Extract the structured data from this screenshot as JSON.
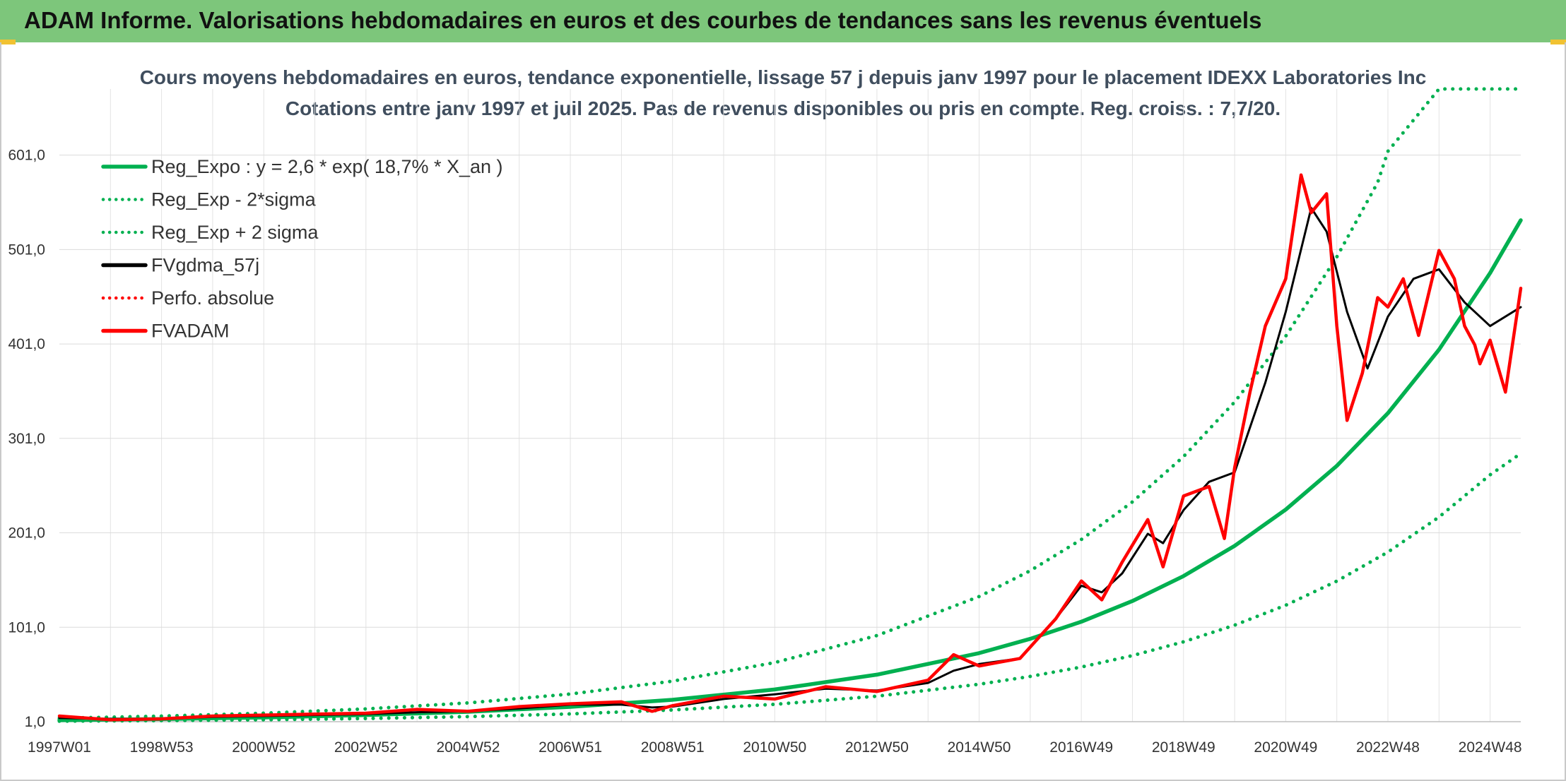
{
  "header": {
    "title": "ADAM Informe. Valorisations hebdomadaires en euros et des courbes de tendances sans les revenus éventuels"
  },
  "colors": {
    "header_bg": "#7dc67b",
    "green": "#00b050",
    "red": "#ff0000",
    "black": "#000000"
  },
  "chart_data": {
    "type": "line",
    "title": "Cours moyens hebdomadaires en euros, tendance exponentielle, lissage 57 j depuis janv 1997 pour le placement IDEXX Laboratories Inc",
    "subtitle": "Cotations entre janv 1997 et juil 2025. Pas de revenus disponibles ou pris en compte. Reg. croiss. : 7,7/20.",
    "xlabel": "",
    "ylabel": "",
    "ylim": [
      1,
      671
    ],
    "xlim": [
      1997.0,
      2025.6
    ],
    "y_ticks": [
      "1,0",
      "101,0",
      "201,0",
      "301,0",
      "401,0",
      "501,0",
      "601,0"
    ],
    "y_tick_values": [
      1,
      101,
      201,
      301,
      401,
      501,
      601
    ],
    "x_ticks": [
      "1997W01",
      "1998W53",
      "2000W52",
      "2002W52",
      "2004W52",
      "2006W51",
      "2008W51",
      "2010W50",
      "2012W50",
      "2014W50",
      "2016W49",
      "2018W49",
      "2020W49",
      "2022W48",
      "2024W48"
    ],
    "x_tick_values": [
      1997.0,
      1999.0,
      2001.0,
      2003.0,
      2005.0,
      2007.0,
      2009.0,
      2011.0,
      2013.0,
      2015.0,
      2017.0,
      2019.0,
      2021.0,
      2023.0,
      2025.0
    ],
    "grid": true,
    "legend_position": "top-left",
    "legend": [
      {
        "label": "Reg_Expo : y = 2,6 * exp( 18,7% *  X_an )",
        "color": "#00b050",
        "style": "solid"
      },
      {
        "label": "Reg_Exp - 2*sigma",
        "color": "#00b050",
        "style": "dotted"
      },
      {
        "label": "Reg_Exp + 2 sigma",
        "color": "#00b050",
        "style": "dotted"
      },
      {
        "label": "FVgdma_57j",
        "color": "#000000",
        "style": "solid"
      },
      {
        "label": "Perfo. absolue",
        "color": "#ff0000",
        "style": "dotted"
      },
      {
        "label": "FVADAM",
        "color": "#ff0000",
        "style": "solid"
      }
    ],
    "series": [
      {
        "name": "Reg_Expo : y = 2,6 * exp( 18,7% *  X_an )",
        "color": "#00b050",
        "style": "solid",
        "x": [
          1997.0,
          1999.0,
          2001.0,
          2003.0,
          2005.0,
          2007.0,
          2009.0,
          2011.0,
          2013.0,
          2015.0,
          2016.0,
          2017.0,
          2018.0,
          2019.0,
          2020.0,
          2021.0,
          2022.0,
          2023.0,
          2024.0,
          2025.0,
          2025.6
        ],
        "y": [
          2.6,
          3.8,
          5.5,
          8.0,
          11.5,
          16.7,
          24.2,
          35.1,
          50.8,
          73.6,
          88.7,
          106.9,
          128.8,
          155.2,
          187.2,
          225.6,
          271.9,
          327.7,
          395.0,
          476.1,
          532.0
        ]
      },
      {
        "name": "Reg_Exp - 2*sigma",
        "color": "#00b050",
        "style": "dotted",
        "x": [
          1997.0,
          1999.0,
          2001.0,
          2003.0,
          2005.0,
          2007.0,
          2009.0,
          2011.0,
          2013.0,
          2015.0,
          2016.0,
          2017.0,
          2018.0,
          2019.0,
          2020.0,
          2021.0,
          2022.0,
          2023.0,
          2024.0,
          2025.0,
          2025.6
        ],
        "y": [
          1.5,
          2.1,
          3.0,
          4.4,
          6.4,
          9.2,
          13.4,
          19.4,
          28.0,
          40.6,
          48.9,
          58.9,
          71.0,
          85.6,
          103.2,
          124.3,
          149.9,
          180.6,
          217.7,
          262.4,
          285.0
        ]
      },
      {
        "name": "Reg_Exp + 2 sigma",
        "color": "#00b050",
        "style": "dotted",
        "x": [
          1997.0,
          1999.0,
          2001.0,
          2003.0,
          2005.0,
          2007.0,
          2009.0,
          2011.0,
          2013.0,
          2015.0,
          2016.0,
          2017.0,
          2018.0,
          2019.0,
          2020.0,
          2021.0,
          2022.0,
          2022.8,
          2023.0,
          2024.0,
          2025.0,
          2025.6
        ],
        "y": [
          4.7,
          6.9,
          10.0,
          14.5,
          20.9,
          30.3,
          43.9,
          63.6,
          92.2,
          133.5,
          160.9,
          193.9,
          233.8,
          281.7,
          339.5,
          409.2,
          493.2,
          572.0,
          605.0,
          671.0,
          671.0,
          671.0
        ]
      },
      {
        "name": "FVgdma_57j",
        "color": "#000000",
        "style": "solid",
        "x": [
          1997.0,
          1998.0,
          1999.0,
          2000.0,
          2001.0,
          2002.0,
          2003.0,
          2004.0,
          2005.0,
          2006.0,
          2007.0,
          2008.0,
          2008.6,
          2009.0,
          2010.0,
          2011.0,
          2012.0,
          2013.0,
          2014.0,
          2014.5,
          2015.0,
          2015.8,
          2016.5,
          2017.0,
          2017.4,
          2017.8,
          2018.3,
          2018.6,
          2019.0,
          2019.5,
          2020.0,
          2020.6,
          2021.0,
          2021.5,
          2021.8,
          2022.2,
          2022.6,
          2023.0,
          2023.5,
          2024.0,
          2024.5,
          2025.0,
          2025.6
        ],
        "y": [
          5,
          4,
          4,
          6,
          7,
          8,
          9,
          11,
          12,
          15,
          19,
          19,
          16,
          17,
          25,
          30,
          36,
          34,
          42,
          55,
          62,
          68,
          110,
          145,
          138,
          158,
          200,
          190,
          225,
          255,
          265,
          360,
          435,
          545,
          520,
          435,
          375,
          430,
          470,
          480,
          445,
          420,
          440
        ]
      },
      {
        "name": "FVADAM",
        "color": "#ff0000",
        "style": "solid",
        "x": [
          1997.0,
          1998.0,
          1999.0,
          2000.0,
          2001.0,
          2002.0,
          2003.0,
          2004.0,
          2005.0,
          2006.0,
          2007.0,
          2008.0,
          2008.6,
          2009.0,
          2010.0,
          2011.0,
          2012.0,
          2013.0,
          2014.0,
          2014.5,
          2015.0,
          2015.8,
          2016.5,
          2017.0,
          2017.4,
          2017.8,
          2018.3,
          2018.6,
          2019.0,
          2019.5,
          2019.8,
          2020.0,
          2020.3,
          2020.6,
          2021.0,
          2021.3,
          2021.5,
          2021.8,
          2022.0,
          2022.2,
          2022.5,
          2022.8,
          2023.0,
          2023.3,
          2023.6,
          2024.0,
          2024.3,
          2024.5,
          2024.7,
          2024.8,
          2025.0,
          2025.3,
          2025.6
        ],
        "y": [
          7,
          3,
          4,
          7,
          8,
          9,
          10,
          14,
          12,
          17,
          20,
          22,
          12,
          18,
          28,
          25,
          38,
          33,
          45,
          72,
          60,
          68,
          110,
          150,
          130,
          170,
          215,
          165,
          240,
          250,
          195,
          270,
          350,
          420,
          470,
          580,
          540,
          560,
          420,
          320,
          370,
          450,
          440,
          470,
          410,
          500,
          470,
          420,
          400,
          380,
          405,
          350,
          460
        ]
      }
    ]
  }
}
